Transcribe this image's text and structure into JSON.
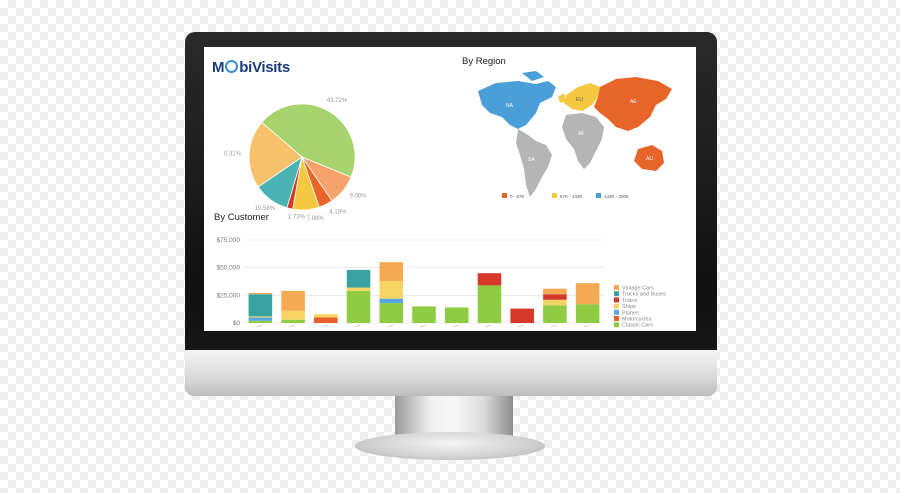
{
  "app": {
    "logo_prefix": "M",
    "logo_mid": "bi",
    "logo_suffix": "Visits"
  },
  "region": {
    "title": "By Region",
    "labels": {
      "na": "NA",
      "eu": "EU",
      "ae": "AE",
      "af": "AF",
      "sa": "SA",
      "au": "AU"
    },
    "legend": [
      "0 - 67K",
      "67K - 133K",
      "133K - 200K"
    ],
    "colors": [
      "#e8652a",
      "#f5c842",
      "#4a9fd8"
    ]
  },
  "customer": {
    "title": "By Customer"
  },
  "chart_data": [
    {
      "type": "pie",
      "slice_labels": [
        "43.72%",
        "9.00%",
        "4.18%",
        "7.88%",
        "1.73%",
        "10.58%",
        "20.31%"
      ],
      "values": [
        43.72,
        9.0,
        4.18,
        7.88,
        1.73,
        10.58,
        20.31
      ],
      "colors": [
        "#a6d36b",
        "#f5a36b",
        "#e8652a",
        "#f5c842",
        "#d33a2a",
        "#4ab3b3",
        "#f7c26b"
      ]
    },
    {
      "type": "bar",
      "ytick_labels": [
        "$75,000",
        "$50,000",
        "$25,000",
        "$0"
      ],
      "yticks": [
        75000,
        50000,
        25000,
        0
      ],
      "ylim": [
        0,
        75000
      ],
      "series": [
        {
          "name": "Vintage Cars",
          "color": "#f5a952",
          "values": [
            1000,
            18000,
            0,
            0,
            17000,
            0,
            0,
            0,
            0,
            5000,
            19000
          ]
        },
        {
          "name": "Trucks and Buses",
          "color": "#39a3a0",
          "values": [
            20000,
            0,
            0,
            16000,
            0,
            0,
            0,
            0,
            0,
            0,
            0
          ]
        },
        {
          "name": "Trains",
          "color": "#d6392b",
          "values": [
            0,
            0,
            0,
            0,
            0,
            0,
            0,
            11000,
            13000,
            5000,
            0
          ]
        },
        {
          "name": "Ships",
          "color": "#f7d463",
          "values": [
            1000,
            8000,
            3000,
            3000,
            16000,
            0,
            0,
            0,
            0,
            5000,
            0
          ]
        },
        {
          "name": "Planes",
          "color": "#5aa6e0",
          "values": [
            3000,
            0,
            0,
            0,
            4000,
            0,
            0,
            0,
            0,
            0,
            0
          ]
        },
        {
          "name": "Motorcycles",
          "color": "#e85f2e",
          "values": [
            0,
            0,
            5000,
            0,
            0,
            0,
            0,
            0,
            0,
            0,
            0
          ]
        },
        {
          "name": "Classic Cars",
          "color": "#8fcc42",
          "values": [
            2000,
            3000,
            0,
            29000,
            18000,
            15000,
            14000,
            34000,
            0,
            16000,
            17000
          ]
        }
      ]
    }
  ]
}
